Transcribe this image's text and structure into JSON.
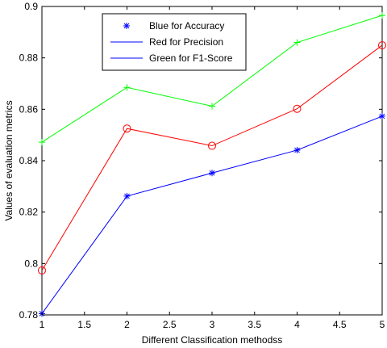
{
  "chart_data": {
    "type": "line",
    "title": "",
    "xlabel": "Different Classification methodss",
    "ylabel": "Values of evaluation metrics",
    "xlim": [
      1,
      5
    ],
    "ylim": [
      0.78,
      0.9
    ],
    "xticks": [
      1,
      1.5,
      2,
      2.5,
      3,
      3.5,
      4,
      4.5,
      5
    ],
    "xtick_labels": [
      "1",
      "1.5",
      "2",
      "2.5",
      "3",
      "3.5",
      "4",
      "4.5",
      "5"
    ],
    "yticks": [
      0.78,
      0.8,
      0.82,
      0.84,
      0.86,
      0.88,
      0.9
    ],
    "ytick_labels": [
      "0.78",
      "0.8",
      "0.82",
      "0.84",
      "0.86",
      "0.88",
      "0.9"
    ],
    "grid": false,
    "legend_position": "top-center",
    "x": [
      1,
      2,
      3,
      4,
      5
    ],
    "series": [
      {
        "name": "Blue for Accuracy",
        "values": [
          0.7805,
          0.8262,
          0.8352,
          0.8441,
          0.8573
        ],
        "color": "#0000ff",
        "marker": "asterisk"
      },
      {
        "name": "Red for Precision",
        "values": [
          0.7973,
          0.8525,
          0.8458,
          0.8602,
          0.8849
        ],
        "color": "#ff0000",
        "marker": "circle"
      },
      {
        "name": "Green for F1-Score",
        "values": [
          0.8472,
          0.8685,
          0.8612,
          0.886,
          0.8965
        ],
        "color": "#00ff00",
        "marker": "plus"
      }
    ],
    "legend_entries": [
      {
        "label": "Blue for Accuracy",
        "line_color": "none",
        "marker": "asterisk",
        "marker_color": "#0000ff"
      },
      {
        "label": "Red for Precision",
        "line_color": "#0000ff",
        "marker": "none",
        "marker_color": ""
      },
      {
        "label": "Green for F1-Score",
        "line_color": "#0000ff",
        "marker": "none",
        "marker_color": ""
      }
    ]
  }
}
